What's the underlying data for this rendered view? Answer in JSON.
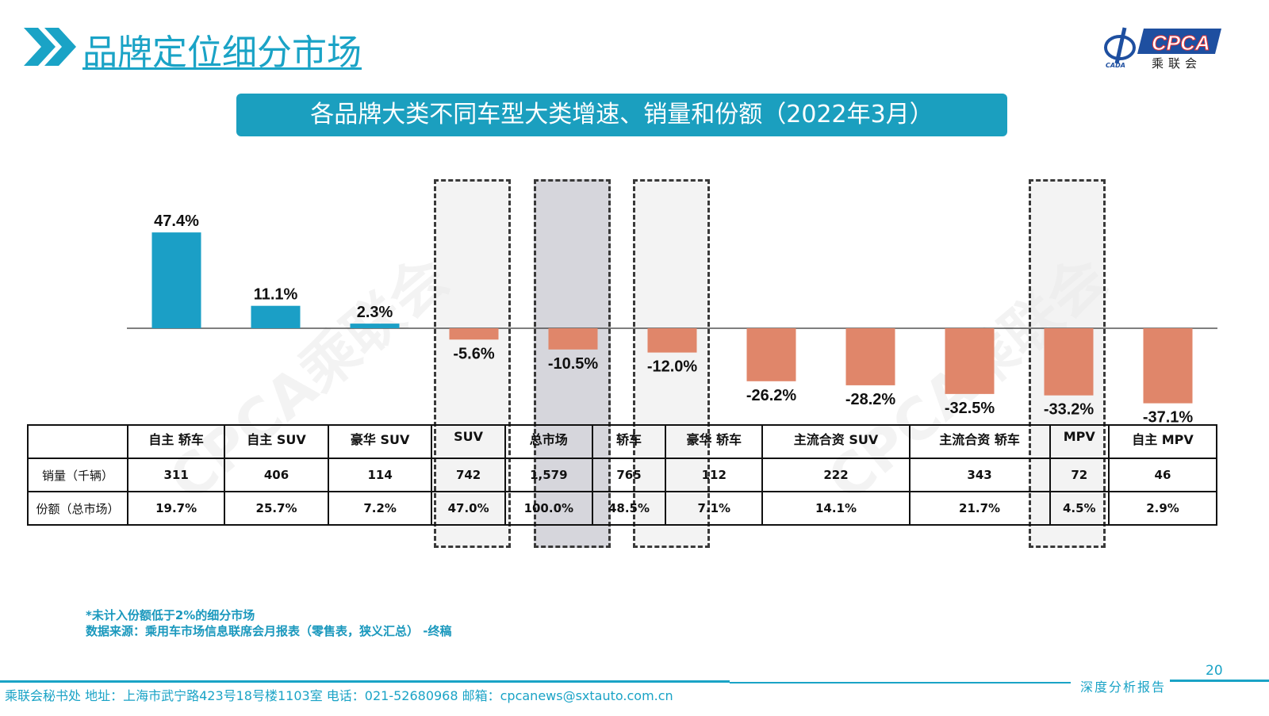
{
  "header": {
    "title": "品牌定位细分市场",
    "logo_text": "CPCA",
    "logo_sub": "乘联会",
    "logo_badge": "CADA"
  },
  "watermark": "CPCA乘联会",
  "colors": {
    "accent": "#1aa3c6",
    "positive": "#1b9fc6",
    "negative": "#e0866a"
  },
  "chart_data": {
    "type": "bar",
    "title": "各品牌大类不同车型大类增速、销量和份额（2022年3月）",
    "categories": [
      "自主 轿车",
      "自主 SUV",
      "豪华 SUV",
      "SUV",
      "总市场",
      "轿车",
      "豪华 轿车",
      "主流合资 SUV",
      "主流合资 轿车",
      "MPV",
      "自主 MPV"
    ],
    "values": [
      47.4,
      11.1,
      2.3,
      -5.6,
      -10.5,
      -12.0,
      -26.2,
      -28.2,
      -32.5,
      -33.2,
      -37.1
    ],
    "data_labels": [
      "47.4%",
      "11.1%",
      "2.3%",
      "-5.6%",
      "-10.5%",
      "-12.0%",
      "-26.2%",
      "-28.2%",
      "-32.5%",
      "-33.2%",
      "-37.1%"
    ],
    "highlighted": [
      "SUV",
      "总市场",
      "轿车",
      "MPV"
    ],
    "unit": "%"
  },
  "table": {
    "rows": [
      {
        "label": "销量（千辆）",
        "values": [
          "311",
          "406",
          "114",
          "742",
          "1,579",
          "765",
          "112",
          "222",
          "343",
          "72",
          "46"
        ]
      },
      {
        "label": "份额（总市场）",
        "values": [
          "19.7%",
          "25.7%",
          "7.2%",
          "47.0%",
          "100.0%",
          "48.5%",
          "7.1%",
          "14.1%",
          "21.7%",
          "4.5%",
          "2.9%"
        ]
      }
    ]
  },
  "notes": [
    "*未计入份额低于2%的细分市场",
    "数据来源：乘用车市场信息联席会月报表（零售表，狭义汇总） -终稿"
  ],
  "footer": {
    "contact": "乘联会秘书处   地址：上海市武宁路423号18号楼1103室  电话：021-52680968   邮箱：cpcanews@sxtauto.com.cn",
    "report": "深度分析报告",
    "page": "20"
  }
}
